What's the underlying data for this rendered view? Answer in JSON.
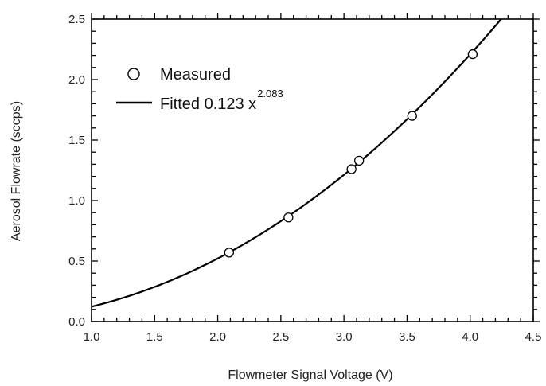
{
  "chart_data": {
    "type": "scatter",
    "xlabel": "Flowmeter Signal Voltage (V)",
    "ylabel": "Aerosol Flowrate (sccps)",
    "xlim": [
      1.0,
      4.5
    ],
    "ylim": [
      0.0,
      2.5
    ],
    "x_ticks": [
      "1.0",
      "1.5",
      "2.0",
      "2.5",
      "3.0",
      "3.5",
      "4.0",
      "4.5"
    ],
    "y_ticks": [
      "0.0",
      "0.5",
      "1.0",
      "1.5",
      "2.0",
      "2.5"
    ],
    "x_tick_values": [
      1.0,
      1.5,
      2.0,
      2.5,
      3.0,
      3.5,
      4.0,
      4.5
    ],
    "y_tick_values": [
      0.0,
      0.5,
      1.0,
      1.5,
      2.0,
      2.5
    ],
    "grid": false,
    "legend_position": "top-left",
    "series": [
      {
        "name": "Measured",
        "marker": "open-circle",
        "x": [
          2.09,
          2.56,
          3.06,
          3.12,
          3.54,
          4.02
        ],
        "y": [
          0.57,
          0.86,
          1.26,
          1.33,
          1.7,
          2.21
        ]
      },
      {
        "name": "Fitted 0.123 x",
        "name_superscript": "2.083",
        "line": "solid",
        "function": {
          "a": 0.123,
          "b": 2.083
        }
      }
    ],
    "colors": {
      "axis": "#000000",
      "series": "#000000"
    }
  }
}
